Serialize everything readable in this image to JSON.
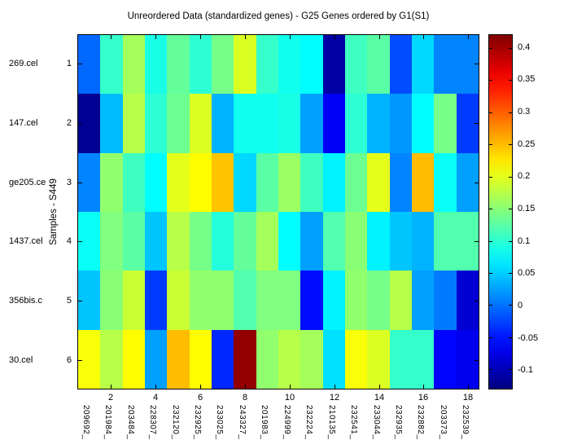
{
  "chart_data": {
    "type": "heatmap",
    "title": "Unreordered Data (standardized genes) - G25 Genes ordered by G1(S1)",
    "ylabel": "Samples - S449",
    "xlabel": "",
    "colormap": "jet",
    "grid": false,
    "colorbar_position": "right",
    "color_axis_range": [
      -0.13,
      0.42
    ],
    "x_numeric_ticks": [
      "2",
      "4",
      "6",
      "8",
      "10",
      "12",
      "14",
      "16",
      "18"
    ],
    "x_numeric_tick_positions": [
      2,
      4,
      6,
      8,
      10,
      12,
      14,
      16,
      18
    ],
    "gene_labels": [
      "209692_",
      "201984_",
      "203484_",
      "228307_",
      "232120_",
      "232925_",
      "233025_",
      "243327_",
      "201983_",
      "224999_",
      "232224_",
      "210135_",
      "232541_",
      "233044_",
      "232935_",
      "232882_",
      "203373_",
      "232539_"
    ],
    "y_numeric_ticks": [
      "1",
      "2",
      "3",
      "4",
      "5",
      "6"
    ],
    "sample_labels": [
      "269.cel",
      "147.cel",
      "ge205.ce",
      "1437.cel",
      "356bis.c",
      "30.cel"
    ],
    "colorbar_tick_labels": [
      "0.4",
      "0.35",
      "0.3",
      "0.25",
      "0.2",
      "0.15",
      "0.1",
      "0.05",
      "0",
      "-0.05",
      "-0.1"
    ],
    "colorbar_tick_values": [
      0.4,
      0.35,
      0.3,
      0.25,
      0.2,
      0.15,
      0.1,
      0.05,
      0,
      -0.05,
      -0.1
    ],
    "values": [
      [
        -0.005,
        0.105,
        0.165,
        0.09,
        0.13,
        0.1,
        0.14,
        0.195,
        0.105,
        0.085,
        0.075,
        -0.11,
        0.11,
        0.125,
        -0.02,
        0.055,
        0.01,
        0.01
      ],
      [
        -0.12,
        0.04,
        0.175,
        0.1,
        0.135,
        0.195,
        0.035,
        0.085,
        0.085,
        0.09,
        0.025,
        -0.065,
        0.1,
        0.035,
        0.02,
        0.075,
        0.14,
        -0.03
      ],
      [
        0.01,
        0.155,
        0.11,
        0.075,
        0.2,
        0.215,
        0.245,
        0.055,
        0.125,
        0.16,
        0.11,
        0.07,
        0.135,
        0.2,
        0.01,
        0.25,
        0.08,
        0.025
      ],
      [
        0.08,
        0.145,
        0.125,
        0.045,
        0.175,
        0.14,
        0.095,
        0.13,
        0.165,
        0.075,
        0.025,
        0.12,
        0.15,
        0.07,
        0.045,
        0.035,
        0.12,
        0.12
      ],
      [
        0.045,
        0.15,
        0.185,
        -0.03,
        0.185,
        0.155,
        0.155,
        0.12,
        0.145,
        0.145,
        -0.055,
        0.07,
        0.155,
        0.14,
        0.175,
        0.025,
        0.005,
        -0.085
      ],
      [
        0.21,
        0.175,
        0.215,
        0.025,
        0.25,
        0.215,
        -0.04,
        0.41,
        0.155,
        0.175,
        0.165,
        0.06,
        0.21,
        0.195,
        0.105,
        0.105,
        -0.06,
        -0.07
      ]
    ]
  }
}
